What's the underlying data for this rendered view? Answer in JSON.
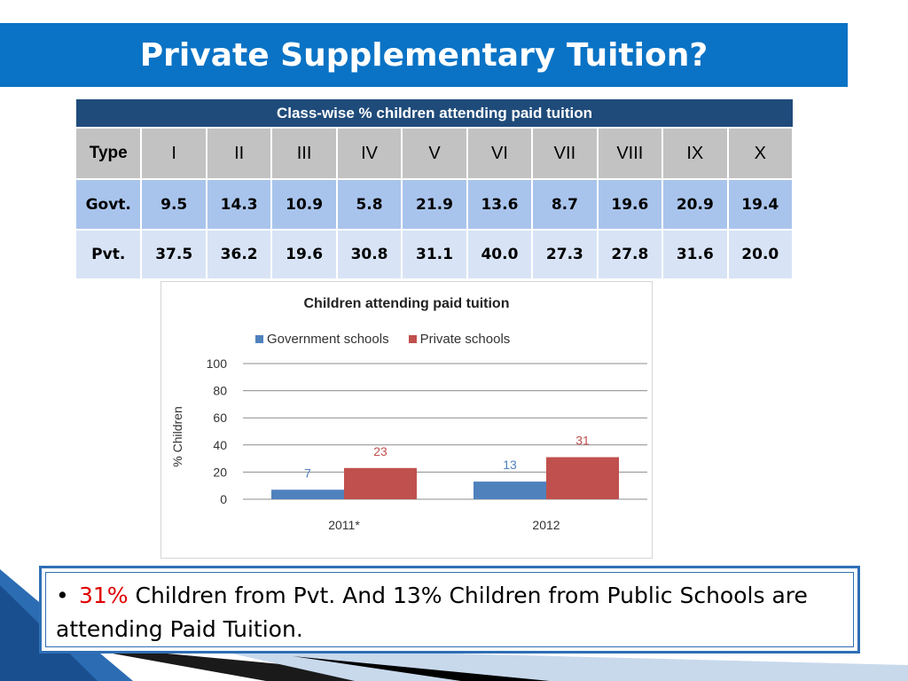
{
  "title": "Private Supplementary Tuition?",
  "table": {
    "caption": "Class-wise % children attending paid tuition",
    "header": [
      "Type",
      "I",
      "II",
      "III",
      "IV",
      "V",
      "VI",
      "VII",
      "VIII",
      "IX",
      "X"
    ],
    "rows": [
      {
        "type": "Govt.",
        "values": [
          "9.5",
          "14.3",
          "10.9",
          "5.8",
          "21.9",
          "13.6",
          "8.7",
          "19.6",
          "20.9",
          "19.4"
        ]
      },
      {
        "type": "Pvt.",
        "values": [
          "37.5",
          "36.2",
          "19.6",
          "30.8",
          "31.1",
          "40.0",
          "27.3",
          "27.8",
          "31.6",
          "20.0"
        ]
      }
    ]
  },
  "chart_data": {
    "type": "bar",
    "title": "Children attending paid tuition",
    "categories": [
      "2011*",
      "2012"
    ],
    "series": [
      {
        "name": "Government schools",
        "values": [
          7,
          13
        ],
        "color": "#4f81bd"
      },
      {
        "name": "Private schools",
        "values": [
          23,
          31
        ],
        "color": "#c0504d"
      }
    ],
    "xlabel": "",
    "ylabel": "% Children",
    "ylim": [
      0,
      100
    ],
    "yticks": [
      0,
      20,
      40,
      60,
      80,
      100
    ],
    "grid": true,
    "legend": "top"
  },
  "note": {
    "bullet": "•",
    "highlight": "31%",
    "text": " Children from Pvt. And 13% Children from Public Schools are attending Paid Tuition."
  },
  "colors": {
    "title_bar": "#0a73c5",
    "table_caption": "#1f4b7a",
    "table_header": "#c2c2c2",
    "govt_row": "#a9c4ec",
    "pvt_row": "#d8e4f6",
    "accent": "#e00000"
  }
}
